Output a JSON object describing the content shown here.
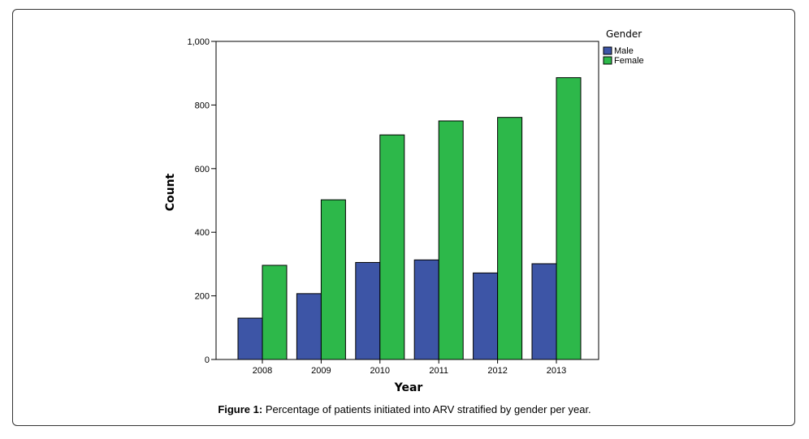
{
  "chart_data": {
    "type": "bar",
    "categories": [
      "2008",
      "2009",
      "2010",
      "2011",
      "2012",
      "2013"
    ],
    "series": [
      {
        "name": "Male",
        "color": "#3d55a6",
        "values": [
          130,
          207,
          305,
          313,
          272,
          301
        ]
      },
      {
        "name": "Female",
        "color": "#2db84a",
        "values": [
          296,
          502,
          706,
          750,
          761,
          886
        ]
      }
    ],
    "xlabel": "Year",
    "ylabel": "Count",
    "ylim": [
      0,
      1000
    ],
    "yticks": [
      0,
      200,
      400,
      600,
      800,
      1000
    ],
    "ytick_labels": [
      "0",
      "200",
      "400",
      "600",
      "800",
      "1,000"
    ],
    "legend": {
      "title": "Gender",
      "placement": "top-right-outside"
    },
    "grid": false
  },
  "caption": {
    "label": "Figure 1:",
    "text": " Percentage of patients initiated into ARV stratified by gender per year."
  }
}
